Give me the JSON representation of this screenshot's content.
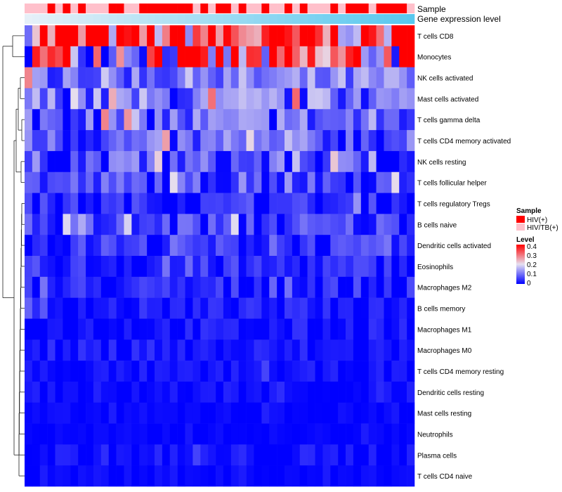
{
  "chart_data": {
    "type": "heatmap",
    "annotation_tracks": [
      {
        "name": "Sample",
        "values": [
          "HIV/TB(+)",
          "HIV/TB(+)",
          "HIV/TB(+)",
          "HIV(+)",
          "HIV/TB(+)",
          "HIV(+)",
          "HIV/TB(+)",
          "HIV(+)",
          "HIV/TB(+)",
          "HIV/TB(+)",
          "HIV/TB(+)",
          "HIV(+)",
          "HIV(+)",
          "HIV/TB(+)",
          "HIV/TB(+)",
          "HIV(+)",
          "HIV(+)",
          "HIV(+)",
          "HIV(+)",
          "HIV(+)",
          "HIV(+)",
          "HIV(+)",
          "HIV/TB(+)",
          "HIV(+)",
          "HIV/TB(+)",
          "HIV(+)",
          "HIV(+)",
          "HIV/TB(+)",
          "HIV(+)",
          "HIV/TB(+)",
          "HIV/TB(+)",
          "HIV(+)",
          "HIV/TB(+)",
          "HIV/TB(+)",
          "HIV(+)",
          "HIV/TB(+)",
          "HIV(+)",
          "HIV/TB(+)",
          "HIV/TB(+)",
          "HIV/TB(+)",
          "HIV(+)",
          "HIV/TB(+)",
          "HIV(+)",
          "HIV(+)",
          "HIV(+)",
          "HIV/TB(+)",
          "HIV(+)",
          "HIV(+)",
          "HIV(+)",
          "HIV(+)",
          "HIV/TB(+)"
        ]
      },
      {
        "name": "Gene expression level",
        "values": [
          0.0,
          0.02,
          0.04,
          0.06,
          0.08,
          0.1,
          0.12,
          0.14,
          0.16,
          0.18,
          0.2,
          0.22,
          0.24,
          0.26,
          0.28,
          0.3,
          0.32,
          0.34,
          0.36,
          0.38,
          0.4,
          0.42,
          0.44,
          0.46,
          0.48,
          0.5,
          0.52,
          0.54,
          0.56,
          0.58,
          0.6,
          0.62,
          0.64,
          0.66,
          0.68,
          0.7,
          0.72,
          0.74,
          0.76,
          0.78,
          0.8,
          0.82,
          0.84,
          0.86,
          0.88,
          0.9,
          0.92,
          0.94,
          0.96,
          0.98,
          1.0
        ]
      }
    ],
    "rows": [
      "T cells CD8",
      "Monocytes",
      "NK cells activated",
      "Mast cells activated",
      "T cells gamma delta",
      "T cells CD4 memory activated",
      "NK cells resting",
      "T cells follicular helper",
      "T cells regulatory  Tregs",
      "B cells naive",
      "Dendritic cells activated",
      "Eosinophils",
      "Macrophages M2",
      "B cells memory",
      "Macrophages M1",
      "Macrophages M0",
      "T cells CD4 memory resting",
      "Dendritic cells resting",
      "Mast cells resting",
      "Neutrophils",
      "Plasma cells",
      "T cells CD4 naive"
    ],
    "n_columns": 51,
    "row_profiles": [
      {
        "mean": 0.32,
        "spread": 0.14
      },
      {
        "mean": 0.24,
        "spread": 0.16
      },
      {
        "mean": 0.1,
        "spread": 0.05
      },
      {
        "mean": 0.09,
        "spread": 0.06
      },
      {
        "mean": 0.08,
        "spread": 0.06
      },
      {
        "mean": 0.07,
        "spread": 0.05
      },
      {
        "mean": 0.06,
        "spread": 0.05
      },
      {
        "mean": 0.06,
        "spread": 0.04
      },
      {
        "mean": 0.03,
        "spread": 0.03
      },
      {
        "mean": 0.05,
        "spread": 0.04
      },
      {
        "mean": 0.04,
        "spread": 0.03
      },
      {
        "mean": 0.03,
        "spread": 0.03
      },
      {
        "mean": 0.025,
        "spread": 0.03
      },
      {
        "mean": 0.02,
        "spread": 0.02
      },
      {
        "mean": 0.015,
        "spread": 0.02
      },
      {
        "mean": 0.015,
        "spread": 0.02
      },
      {
        "mean": 0.01,
        "spread": 0.015
      },
      {
        "mean": 0.008,
        "spread": 0.015
      },
      {
        "mean": 0.004,
        "spread": 0.008
      },
      {
        "mean": 0.003,
        "spread": 0.006
      },
      {
        "mean": 0.01,
        "spread": 0.02
      },
      {
        "mean": 0.006,
        "spread": 0.012
      }
    ],
    "color_scale": {
      "min": 0,
      "mid": 0.2,
      "max": 0.4,
      "colors": [
        "#0000ff",
        "#e6e0f0",
        "#ff0000"
      ]
    },
    "legends": {
      "sample": {
        "title": "Sample",
        "entries": [
          {
            "label": "HIV(+)",
            "color": "#ff0000"
          },
          {
            "label": "HIV/TB(+)",
            "color": "#ffc0cb"
          }
        ]
      },
      "level": {
        "title": "Level",
        "ticks": [
          0.4,
          0.3,
          0.2,
          0.1,
          0
        ]
      }
    },
    "row_dendrogram": true,
    "xlabel": "",
    "ylabel": ""
  }
}
